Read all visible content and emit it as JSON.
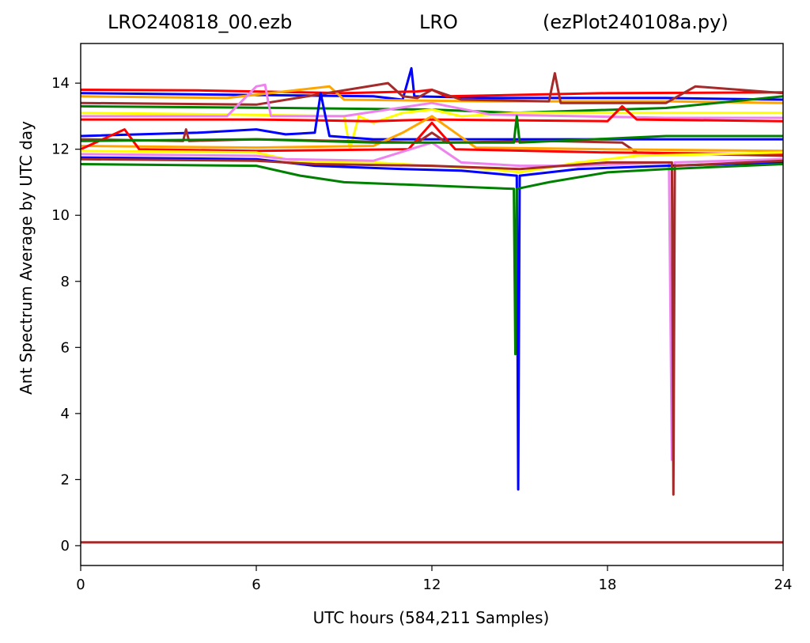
{
  "chart_data": {
    "type": "line",
    "title_parts": [
      "LRO240818_00.ezb",
      "LRO",
      "(ezPlot240108a.py)"
    ],
    "xlabel": "UTC hours  (584,211 Samples)",
    "ylabel": "Ant Spectrum Average by UTC day",
    "xlim": [
      0,
      24
    ],
    "ylim": [
      -0.6,
      15.2
    ],
    "xticks": [
      0,
      6,
      12,
      18,
      24
    ],
    "yticks": [
      0,
      2,
      4,
      6,
      8,
      10,
      12,
      14
    ],
    "grid": false,
    "legend": "none",
    "series": [
      {
        "color": "#0000ff",
        "points": [
          [
            0,
            13.7
          ],
          [
            5,
            13.65
          ],
          [
            10,
            13.6
          ],
          [
            11,
            13.5
          ],
          [
            11.3,
            14.45
          ],
          [
            11.4,
            13.6
          ],
          [
            14,
            13.55
          ],
          [
            20,
            13.55
          ],
          [
            24,
            13.5
          ]
        ]
      },
      {
        "color": "#ff0000",
        "points": [
          [
            0,
            13.8
          ],
          [
            4,
            13.78
          ],
          [
            9,
            13.7
          ],
          [
            11.5,
            13.75
          ],
          [
            12,
            13.8
          ],
          [
            12.5,
            13.6
          ],
          [
            18,
            13.7
          ],
          [
            24,
            13.72
          ]
        ]
      },
      {
        "color": "#ffa500",
        "points": [
          [
            0,
            13.6
          ],
          [
            5,
            13.55
          ],
          [
            8.5,
            13.9
          ],
          [
            9,
            13.5
          ],
          [
            14,
            13.45
          ],
          [
            20,
            13.45
          ],
          [
            24,
            13.4
          ]
        ]
      },
      {
        "color": "#a52a2a",
        "points": [
          [
            0,
            13.4
          ],
          [
            6,
            13.35
          ],
          [
            10.5,
            14.0
          ],
          [
            11,
            13.6
          ],
          [
            11.5,
            13.55
          ],
          [
            12,
            13.8
          ],
          [
            13,
            13.5
          ],
          [
            16,
            13.45
          ],
          [
            16.2,
            14.3
          ],
          [
            16.4,
            13.4
          ],
          [
            20,
            13.4
          ],
          [
            21,
            13.9
          ],
          [
            24,
            13.7
          ]
        ]
      },
      {
        "color": "#008000",
        "points": [
          [
            0,
            13.3
          ],
          [
            7,
            13.25
          ],
          [
            12,
            13.2
          ],
          [
            14.8,
            13.1
          ],
          [
            20,
            13.25
          ],
          [
            24,
            13.6
          ]
        ]
      },
      {
        "color": "#ffff00",
        "points": [
          [
            0,
            13.1
          ],
          [
            5,
            13.05
          ],
          [
            9,
            13.0
          ],
          [
            9.2,
            12.0
          ],
          [
            9.5,
            13.0
          ],
          [
            10,
            12.8
          ],
          [
            11,
            13.1
          ],
          [
            12,
            13.2
          ],
          [
            13,
            13.0
          ],
          [
            15,
            13.1
          ],
          [
            24,
            13.1
          ]
        ]
      },
      {
        "color": "#ee82ee",
        "points": [
          [
            0,
            13.0
          ],
          [
            5,
            13.0
          ],
          [
            6,
            13.9
          ],
          [
            6.3,
            13.95
          ],
          [
            6.5,
            13.0
          ],
          [
            9,
            13.0
          ],
          [
            12,
            13.4
          ],
          [
            14,
            13.05
          ],
          [
            20,
            12.95
          ],
          [
            24,
            12.95
          ]
        ]
      },
      {
        "color": "#ff0000",
        "points": [
          [
            0,
            12.9
          ],
          [
            6,
            12.9
          ],
          [
            10,
            12.85
          ],
          [
            12,
            12.9
          ],
          [
            18,
            12.85
          ],
          [
            18.5,
            13.3
          ],
          [
            19,
            12.9
          ],
          [
            24,
            12.85
          ]
        ]
      },
      {
        "color": "#0000ff",
        "points": [
          [
            0,
            12.4
          ],
          [
            4,
            12.5
          ],
          [
            6,
            12.6
          ],
          [
            7,
            12.45
          ],
          [
            8,
            12.5
          ],
          [
            8.2,
            13.7
          ],
          [
            8.5,
            12.4
          ],
          [
            10,
            12.3
          ],
          [
            14,
            12.3
          ],
          [
            20,
            12.3
          ],
          [
            24,
            12.3
          ]
        ]
      },
      {
        "color": "#a52a2a",
        "points": [
          [
            0,
            12.3
          ],
          [
            3.5,
            12.25
          ],
          [
            3.6,
            12.6
          ],
          [
            3.7,
            12.25
          ],
          [
            6,
            12.3
          ],
          [
            11.5,
            12.2
          ],
          [
            12,
            12.5
          ],
          [
            12.5,
            12.2
          ],
          [
            16,
            12.25
          ],
          [
            18.5,
            12.2
          ],
          [
            19,
            11.9
          ],
          [
            24,
            11.8
          ]
        ]
      },
      {
        "color": "#ffa500",
        "points": [
          [
            0,
            12.1
          ],
          [
            6,
            12.05
          ],
          [
            10,
            12.1
          ],
          [
            11,
            12.5
          ],
          [
            12,
            13.0
          ],
          [
            12.8,
            12.5
          ],
          [
            13.5,
            12.05
          ],
          [
            18,
            12.0
          ],
          [
            24,
            11.95
          ]
        ]
      },
      {
        "color": "#ff0000",
        "points": [
          [
            0,
            12.0
          ],
          [
            1.5,
            12.6
          ],
          [
            2,
            12.0
          ],
          [
            6,
            11.95
          ],
          [
            11.2,
            12.0
          ],
          [
            12,
            12.8
          ],
          [
            12.8,
            12.0
          ],
          [
            18,
            11.9
          ],
          [
            24,
            11.85
          ]
        ]
      },
      {
        "color": "#ffff00",
        "points": [
          [
            0,
            11.95
          ],
          [
            6,
            11.9
          ],
          [
            7.5,
            11.6
          ],
          [
            10,
            11.6
          ],
          [
            12,
            11.5
          ],
          [
            14,
            11.4
          ],
          [
            15,
            11.3
          ],
          [
            17,
            11.6
          ],
          [
            19,
            11.8
          ],
          [
            24,
            11.9
          ]
        ]
      },
      {
        "color": "#ee82ee",
        "points": [
          [
            0,
            11.85
          ],
          [
            6,
            11.8
          ],
          [
            7,
            11.7
          ],
          [
            10,
            11.65
          ],
          [
            12,
            12.2
          ],
          [
            13,
            11.6
          ],
          [
            15,
            11.5
          ],
          [
            17,
            11.5
          ],
          [
            20.1,
            11.6
          ],
          [
            20.2,
            2.6
          ],
          [
            20.3,
            11.6
          ],
          [
            24,
            11.7
          ]
        ]
      },
      {
        "color": "#0000ff",
        "points": [
          [
            0,
            11.75
          ],
          [
            6,
            11.7
          ],
          [
            8,
            11.5
          ],
          [
            11,
            11.4
          ],
          [
            13,
            11.35
          ],
          [
            14.9,
            11.2
          ],
          [
            14.95,
            1.7
          ],
          [
            15.0,
            11.2
          ],
          [
            17,
            11.4
          ],
          [
            20,
            11.5
          ],
          [
            24,
            11.6
          ]
        ]
      },
      {
        "color": "#a52a2a",
        "points": [
          [
            0,
            11.7
          ],
          [
            6,
            11.65
          ],
          [
            8,
            11.55
          ],
          [
            12,
            11.5
          ],
          [
            15,
            11.4
          ],
          [
            18,
            11.6
          ],
          [
            20.2,
            11.6
          ],
          [
            20.25,
            1.55
          ],
          [
            20.3,
            11.5
          ],
          [
            24,
            11.65
          ]
        ]
      },
      {
        "color": "#008000",
        "points": [
          [
            0,
            11.55
          ],
          [
            6,
            11.5
          ],
          [
            7.5,
            11.2
          ],
          [
            9,
            11.0
          ],
          [
            12,
            10.9
          ],
          [
            14.8,
            10.8
          ],
          [
            14.85,
            5.8
          ],
          [
            14.9,
            10.8
          ],
          [
            16,
            11.0
          ],
          [
            18,
            11.3
          ],
          [
            20,
            11.4
          ],
          [
            24,
            11.55
          ]
        ]
      },
      {
        "color": "#008000",
        "points": [
          [
            0,
            12.25
          ],
          [
            6,
            12.3
          ],
          [
            10,
            12.2
          ],
          [
            14.8,
            12.2
          ],
          [
            14.9,
            13.0
          ],
          [
            15,
            12.2
          ],
          [
            20,
            12.4
          ],
          [
            24,
            12.4
          ]
        ]
      },
      {
        "color": "#a52a2a",
        "points": [
          [
            0,
            0.1
          ],
          [
            24,
            0.1
          ]
        ]
      }
    ]
  }
}
